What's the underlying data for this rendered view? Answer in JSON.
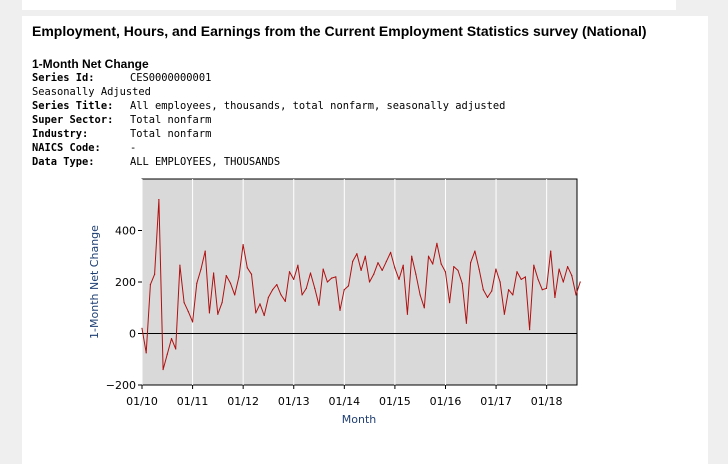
{
  "report": {
    "title": "Employment, Hours, and Earnings from the Current Employment Statistics survey (National)",
    "chart_heading": "1-Month Net Change",
    "seasonal": "Seasonally Adjusted",
    "fields": [
      {
        "key": "Series Id:",
        "value": "CES0000000001"
      },
      {
        "key": "Series Title:",
        "value": "All employees, thousands, total nonfarm, seasonally adjusted"
      },
      {
        "key": "Super Sector:",
        "value": "Total nonfarm"
      },
      {
        "key": "Industry:",
        "value": "Total nonfarm"
      },
      {
        "key": "NAICS Code:",
        "value": "-"
      },
      {
        "key": "Data Type:",
        "value": "ALL EMPLOYEES, THOUSANDS"
      }
    ]
  },
  "colors": {
    "line": "#b01010",
    "plot_bg": "#d9d9d9",
    "grid": "#ffffff",
    "axis_label": "#1f3f73",
    "zero_line": "#000000"
  },
  "chart_data": {
    "type": "line",
    "title": "",
    "xlabel": "Month",
    "ylabel": "1-Month Net Change",
    "xlim": [
      2010.0,
      2018.6
    ],
    "ylim": [
      -200,
      600
    ],
    "yticks": [
      -200,
      0,
      200,
      400
    ],
    "xticks": [
      {
        "v": 2010.0,
        "label": "01/10"
      },
      {
        "v": 2011.0,
        "label": "01/11"
      },
      {
        "v": 2012.0,
        "label": "01/12"
      },
      {
        "v": 2013.0,
        "label": "01/13"
      },
      {
        "v": 2014.0,
        "label": "01/14"
      },
      {
        "v": 2015.0,
        "label": "01/15"
      },
      {
        "v": 2016.0,
        "label": "01/16"
      },
      {
        "v": 2017.0,
        "label": "01/17"
      },
      {
        "v": 2018.0,
        "label": "01/18"
      }
    ],
    "x_start": 2010.0,
    "x_step": 0.0833,
    "series": [
      {
        "name": "1-Month Net Change",
        "values": [
          20,
          -75,
          190,
          230,
          520,
          -140,
          -80,
          -20,
          -60,
          265,
          120,
          85,
          45,
          195,
          250,
          320,
          80,
          235,
          75,
          120,
          225,
          195,
          150,
          220,
          345,
          255,
          230,
          80,
          115,
          70,
          140,
          170,
          190,
          150,
          125,
          240,
          210,
          265,
          150,
          175,
          235,
          175,
          110,
          250,
          200,
          215,
          220,
          90,
          170,
          185,
          280,
          310,
          245,
          300,
          200,
          230,
          275,
          245,
          280,
          315,
          255,
          210,
          265,
          75,
          300,
          230,
          150,
          100,
          300,
          270,
          350,
          270,
          240,
          120,
          260,
          245,
          195,
          40,
          275,
          320,
          250,
          170,
          140,
          165,
          250,
          200,
          75,
          170,
          150,
          240,
          210,
          220,
          15,
          265,
          210,
          170,
          175,
          320,
          140,
          250,
          200,
          260,
          225,
          150,
          200
        ]
      }
    ]
  }
}
